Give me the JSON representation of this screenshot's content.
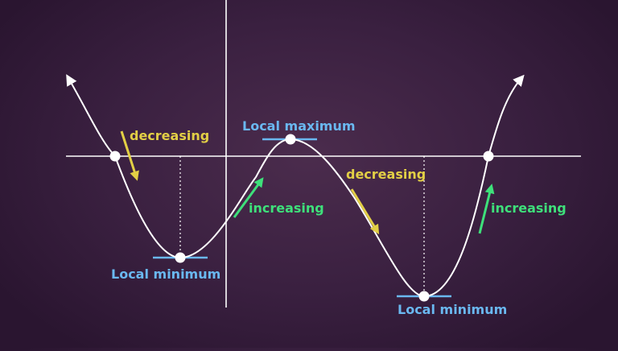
{
  "labels": {
    "local_maximum": "Local maximum",
    "local_minimum_left": "Local minimum",
    "local_minimum_right": "Local minimum",
    "decreasing_left": "decreasing",
    "decreasing_right": "decreasing",
    "increasing_middle": "increasing",
    "increasing_right": "increasing"
  },
  "colors": {
    "background": "#3a2040",
    "curve": "#ffffff",
    "axes": "#ffffff",
    "extremum_label": "#6ab8f0",
    "extremum_tangent": "#6ab8f0",
    "decreasing": "#e2cf45",
    "increasing": "#3ee07a"
  },
  "icons": {
    "curve_end_arrow": "arrowhead-icon",
    "trend_arrow": "arrow-icon"
  }
}
